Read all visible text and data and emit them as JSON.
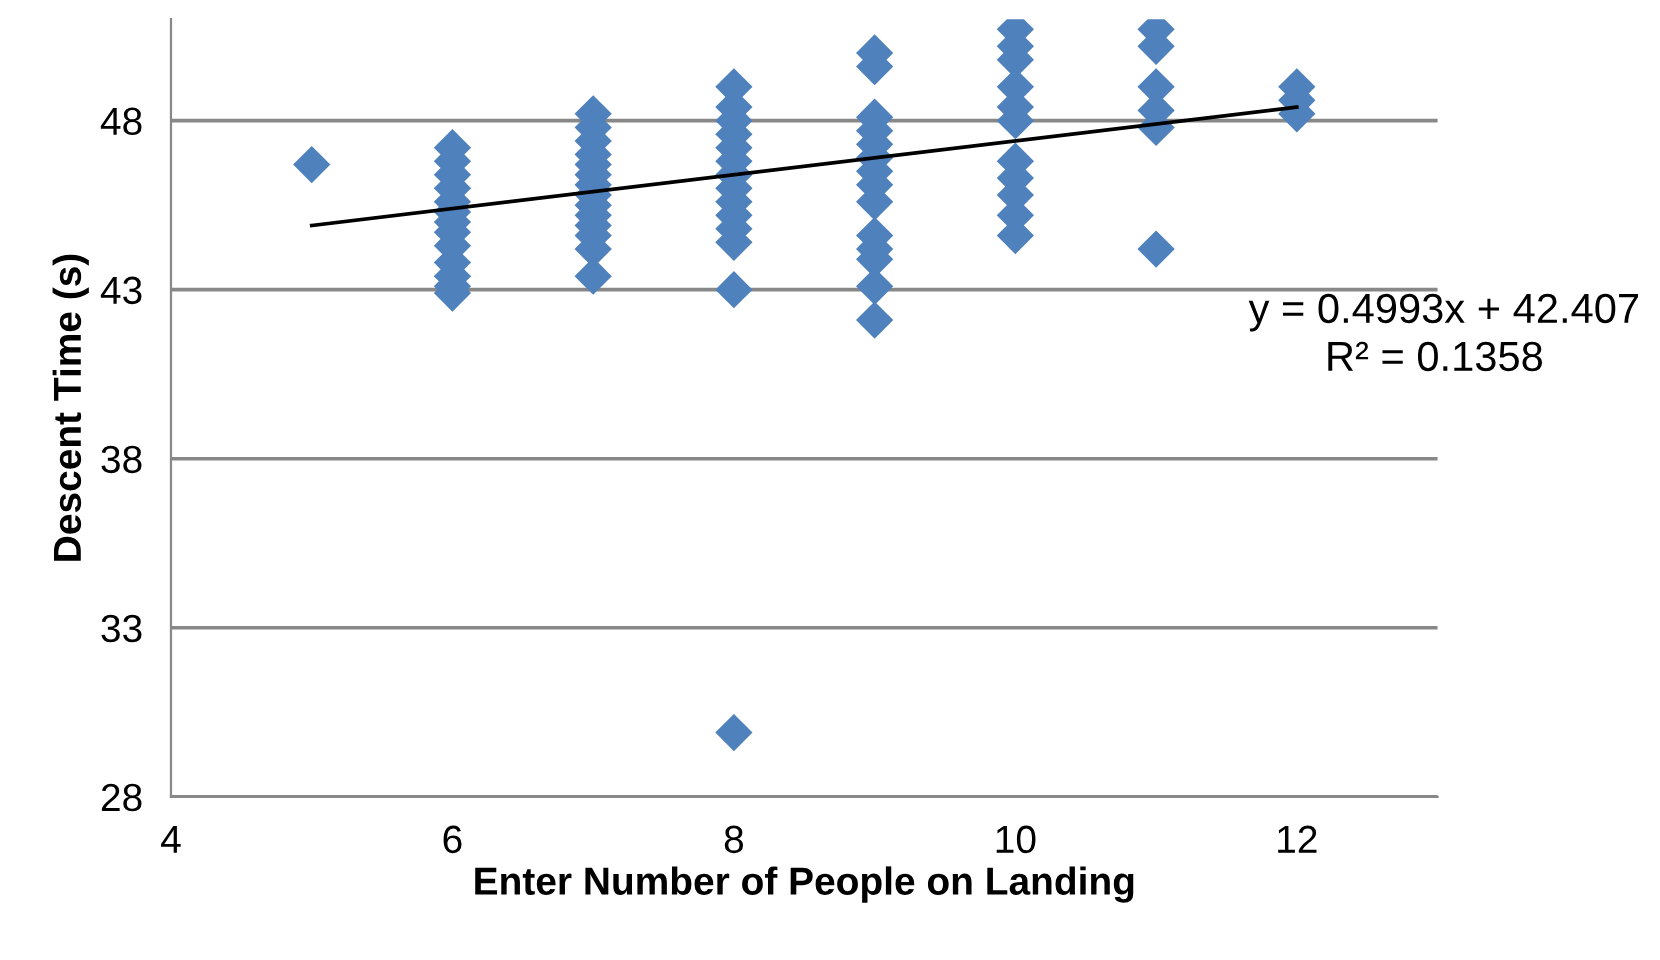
{
  "chart_data": {
    "type": "scatter",
    "xlabel": "Enter Number of People on Landing",
    "ylabel": "Descent Time (s)",
    "xlim": [
      4,
      13
    ],
    "xticks": [
      4,
      6,
      8,
      10,
      12
    ],
    "ylim": [
      28,
      51
    ],
    "yticks": [
      28,
      33,
      38,
      43,
      48
    ],
    "grid": "y",
    "legend": false,
    "marker": "diamond",
    "series": [
      {
        "color": "#4f81bd",
        "x": [
          5,
          6,
          6,
          6,
          6,
          6,
          6,
          6,
          6,
          6,
          6,
          6,
          6,
          6,
          7,
          7,
          7,
          7,
          7,
          7,
          7,
          7,
          7,
          7,
          7,
          7,
          7,
          7,
          8,
          8,
          8,
          8,
          8,
          8,
          8,
          8,
          8,
          8,
          8,
          8,
          8,
          8,
          9,
          9,
          9,
          9,
          9,
          9,
          9,
          9,
          9,
          9,
          9,
          9,
          9,
          9,
          10,
          10,
          10,
          10,
          10,
          10,
          10,
          10,
          10,
          10,
          10,
          11,
          11,
          11,
          11,
          11,
          11,
          12,
          12,
          12
        ],
        "values": [
          46.7,
          47.2,
          46.8,
          46.4,
          46.0,
          45.6,
          45.3,
          45.0,
          44.7,
          44.3,
          43.8,
          43.4,
          43.1,
          42.9,
          48.2,
          47.8,
          47.4,
          47.0,
          46.7,
          46.4,
          46.1,
          45.8,
          45.5,
          45.2,
          44.9,
          44.6,
          44.2,
          43.4,
          49.0,
          48.4,
          48.0,
          47.6,
          47.2,
          46.8,
          46.4,
          46.0,
          45.6,
          45.2,
          44.8,
          44.4,
          43.0,
          29.9,
          50.0,
          49.6,
          48.1,
          47.7,
          47.3,
          46.9,
          46.5,
          46.1,
          45.6,
          44.6,
          44.2,
          43.9,
          43.1,
          42.1,
          50.7,
          50.2,
          49.8,
          49.0,
          48.4,
          48.0,
          46.8,
          46.3,
          45.8,
          45.2,
          44.6,
          50.7,
          50.2,
          49.0,
          48.3,
          47.8,
          44.2,
          49.0,
          48.6,
          48.2
        ]
      },
      {
        "type": "line",
        "color": "#000000",
        "marker": "none",
        "x": [
          5,
          12
        ],
        "values": [
          44.9,
          48.4
        ]
      }
    ],
    "annotations": [
      "y = 0.4993x + 42.407",
      "R² = 0.1358"
    ]
  }
}
